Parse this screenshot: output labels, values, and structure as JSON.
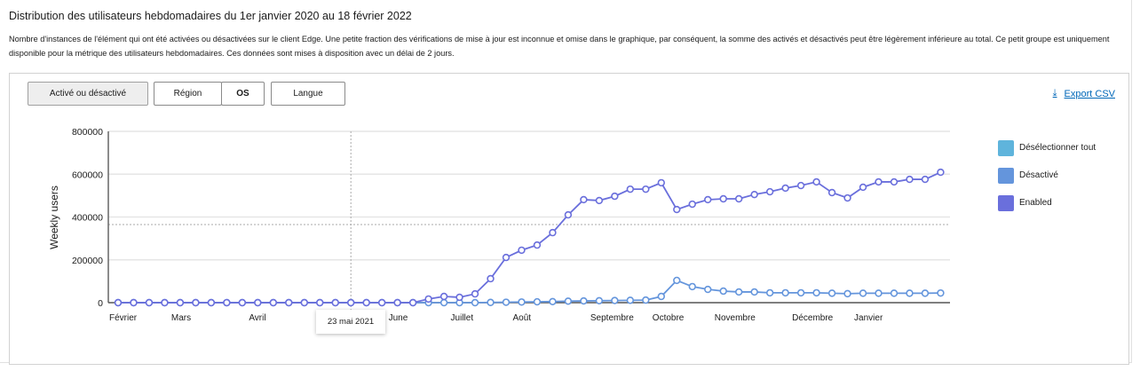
{
  "header": {
    "title": "Distribution des utilisateurs hebdomadaires du 1er janvier 2020 au 18 février 2022",
    "description": "Nombre d'instances de l'élément qui ont été activées ou désactivées sur le client Edge. Une petite fraction des vérifications de mise à jour est inconnue et omise dans le graphique, par conséquent, la somme des activés et désactivés peut être légèrement inférieure au total. Ce petit groupe est uniquement disponible pour la métrique des utilisateurs hebdomadaires. Ces données sont mises à disposition avec un délai de 2 jours."
  },
  "toolbar": {
    "tabs": [
      {
        "label": "Activé ou désactivé",
        "active": true
      },
      {
        "label": "Région",
        "active": false
      },
      {
        "label": "OS",
        "active": false
      },
      {
        "label": "Langue",
        "active": false
      }
    ],
    "export_label": "Export CSV",
    "export_icon": "download-icon"
  },
  "legend": [
    {
      "label": "Désélectionner tout",
      "color": "#5fb4dc"
    },
    {
      "label": "Désactivé",
      "color": "#6495dc"
    },
    {
      "label": "Enabled",
      "color": "#6a6fdc"
    }
  ],
  "tooltip": {
    "label": "23 mai 2021"
  },
  "chart_data": {
    "type": "line",
    "title": "Distribution des utilisateurs hebdomadaires du 1er janvier 2020 au 18 février 2022",
    "xlabel": "",
    "ylabel": "Weekly users",
    "ylim": [
      0,
      800000
    ],
    "yticks": [
      0,
      200000,
      400000,
      600000,
      800000
    ],
    "ytick_labels": [
      "0",
      "200000",
      "400000",
      "600000",
      "800000"
    ],
    "grid": true,
    "legend_position": "right",
    "x_month_labels": [
      {
        "label": "Février",
        "index": 0
      },
      {
        "label": "Mars",
        "index": 4
      },
      {
        "label": "Avril",
        "index": 9
      },
      {
        "label": "June",
        "index": 18
      },
      {
        "label": "Juillet",
        "index": 22
      },
      {
        "label": "Août",
        "index": 26
      },
      {
        "label": "Septembre",
        "index": 31
      },
      {
        "label": "Octobre",
        "index": 35
      },
      {
        "label": "Novembre",
        "index": 39
      },
      {
        "label": "Décembre",
        "index": 44
      },
      {
        "label": "Janvier",
        "index": 48
      }
    ],
    "crosshair": {
      "index": 15,
      "value": 365000,
      "label": "23 mai 2021"
    },
    "series": [
      {
        "name": "Enabled",
        "color": "#6a6fdc",
        "values": [
          0,
          0,
          0,
          0,
          0,
          0,
          0,
          0,
          0,
          0,
          0,
          0,
          0,
          0,
          0,
          0,
          0,
          0,
          0,
          0,
          17000,
          29000,
          25000,
          41000,
          112000,
          211000,
          245000,
          269000,
          327000,
          410000,
          481000,
          477000,
          497000,
          530000,
          530000,
          560000,
          435000,
          460000,
          481000,
          485000,
          485000,
          505000,
          518000,
          535000,
          547000,
          564000,
          514000,
          489000,
          539000,
          564000,
          564000,
          576000,
          576000,
          609000
        ]
      },
      {
        "name": "Désactivé",
        "color": "#6495dc",
        "values": [
          0,
          0,
          0,
          0,
          0,
          0,
          0,
          0,
          0,
          0,
          0,
          0,
          0,
          0,
          0,
          0,
          0,
          0,
          0,
          0,
          0,
          0,
          0,
          0,
          1000,
          2000,
          3000,
          4000,
          5000,
          7000,
          8000,
          9000,
          10000,
          11000,
          12000,
          29000,
          104000,
          75000,
          62000,
          54000,
          50000,
          50000,
          46000,
          46000,
          46000,
          46000,
          44000,
          42000,
          44000,
          44000,
          44000,
          44000,
          44000,
          45000
        ]
      }
    ]
  }
}
